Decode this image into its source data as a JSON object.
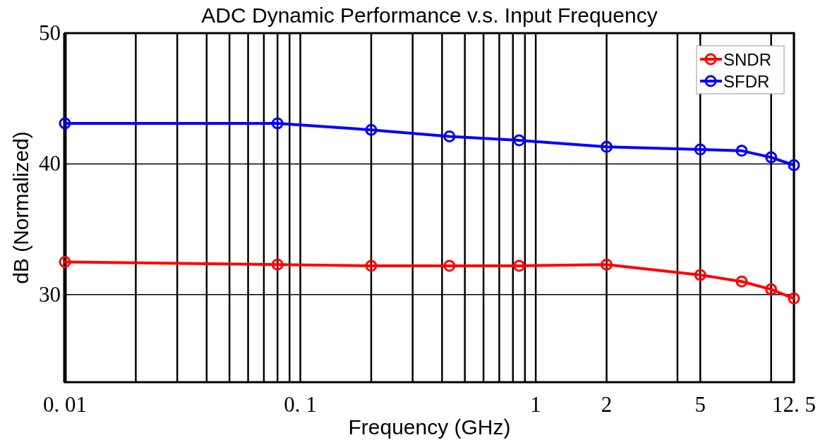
{
  "chart_data": {
    "type": "line",
    "title": "ADC Dynamic Performance v.s. Input Frequency",
    "xlabel": "Frequency (GHz)",
    "ylabel": "dB (Normalized)",
    "log": "x",
    "xlim": [
      0.01,
      12.5
    ],
    "ylim": [
      23.3,
      50
    ],
    "xticks": [
      {
        "value": 0.01,
        "label": "0. 01"
      },
      {
        "value": 0.02,
        "label": null
      },
      {
        "value": 0.03,
        "label": null
      },
      {
        "value": 0.04,
        "label": null
      },
      {
        "value": 0.05,
        "label": null
      },
      {
        "value": 0.06,
        "label": null
      },
      {
        "value": 0.07,
        "label": null
      },
      {
        "value": 0.08,
        "label": null
      },
      {
        "value": 0.09,
        "label": null
      },
      {
        "value": 0.1,
        "label": "0. 1"
      },
      {
        "value": 0.2,
        "label": null
      },
      {
        "value": 0.3,
        "label": null
      },
      {
        "value": 0.4,
        "label": null
      },
      {
        "value": 0.5,
        "label": null
      },
      {
        "value": 0.6,
        "label": null
      },
      {
        "value": 0.7,
        "label": null
      },
      {
        "value": 0.8,
        "label": null
      },
      {
        "value": 0.9,
        "label": null
      },
      1,
      2,
      {
        "value": 4,
        "label": null
      },
      5,
      {
        "value": 10,
        "label": null
      },
      {
        "value": 12.5,
        "label": "12. 5"
      }
    ],
    "yticks": [
      30,
      40,
      50
    ],
    "grid": true,
    "legend": "top right",
    "marker": "circle",
    "line_style": "solid",
    "x": [
      0.01,
      0.08,
      0.2,
      0.43,
      0.85,
      2,
      5,
      7.5,
      10,
      12.5
    ],
    "series": [
      {
        "name": "SNDR",
        "color": "#ff0000",
        "values": [
          32.5,
          32.3,
          32.2,
          32.2,
          32.2,
          32.3,
          31.5,
          31.0,
          30.4,
          29.7
        ]
      },
      {
        "name": "SFDR",
        "color": "#0000ff",
        "values": [
          43.1,
          43.1,
          42.6,
          42.1,
          41.8,
          41.3,
          41.1,
          41.0,
          40.5,
          39.9
        ]
      }
    ]
  }
}
